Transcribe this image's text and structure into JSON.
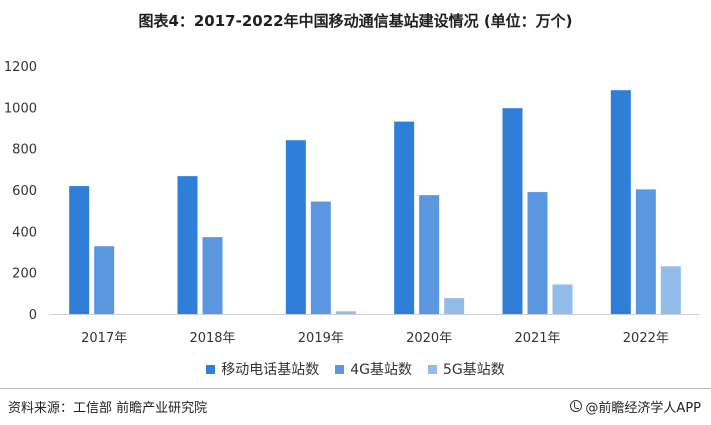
{
  "chart_data": {
    "type": "bar",
    "title": "图表4：2017-2022年中国移动通信基站建设情况 (单位：万个)",
    "categories": [
      "2017年",
      "2018年",
      "2019年",
      "2020年",
      "2021年",
      "2022年"
    ],
    "series": [
      {
        "name": "移动电话基站数",
        "color": "#2f7ed8",
        "values": [
          619,
          667,
          841,
          931,
          996,
          1083
        ]
      },
      {
        "name": "4G基站数",
        "color": "#5b97e0",
        "values": [
          328,
          372,
          544,
          575,
          590,
          603
        ]
      },
      {
        "name": "5G基站数",
        "color": "#93bde8",
        "values": [
          0,
          0,
          13,
          77,
          143,
          231
        ]
      }
    ],
    "yticks": [
      0,
      200,
      400,
      600,
      800,
      1000,
      1200
    ],
    "ylim": [
      0,
      1200
    ],
    "grid": false,
    "legend_position": "bottom"
  },
  "footer": {
    "source": "资料来源：工信部 前瞻产业研究院",
    "brand": "@前瞻经济学人APP"
  }
}
